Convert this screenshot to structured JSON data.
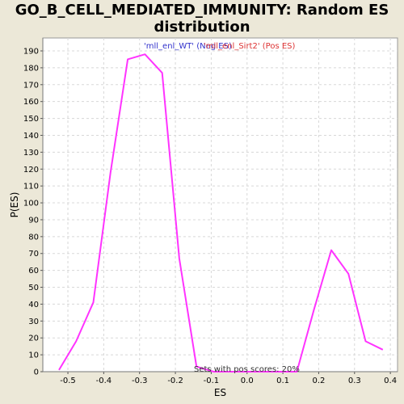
{
  "title": "GO_B_CELL_MEDIATED_IMMUNITY: Random ES\ndistribution",
  "title_line1": "GO_B_CELL_MEDIATED_IMMUNITY: Random ES",
  "title_line2": "distribution",
  "chart_data": {
    "type": "line",
    "xlabel": "ES",
    "ylabel": "P(ES)",
    "xlim": [
      -0.57,
      0.42
    ],
    "ylim": [
      0,
      190
    ],
    "xticks": [
      -0.5,
      -0.4,
      -0.3,
      -0.2,
      -0.1,
      0.0,
      0.1,
      0.2,
      0.3,
      0.4
    ],
    "xtick_labels": [
      "-0.5",
      "-0.4",
      "-0.3",
      "-0.2",
      "-0.1",
      "0.0",
      "0.1",
      "0.2",
      "0.3",
      "0.4"
    ],
    "yticks": [
      0,
      10,
      20,
      30,
      40,
      50,
      60,
      70,
      80,
      90,
      100,
      110,
      120,
      130,
      140,
      150,
      160,
      170,
      180,
      190
    ],
    "grid": true,
    "legend": [
      {
        "label": "'mll_enl_WT' (Neg ES)",
        "color": "#3333cc"
      },
      {
        "label": "'mll_enl_Sirt2' (Pos ES)",
        "color": "#dd3333"
      }
    ],
    "series": [
      {
        "color": "#ff33ff",
        "x": [
          -0.525,
          -0.477,
          -0.429,
          -0.381,
          -0.333,
          -0.285,
          -0.237,
          -0.189,
          -0.141,
          -0.093,
          -0.045,
          0.003,
          0.051,
          0.099,
          0.139,
          0.187,
          0.235,
          0.283,
          0.331,
          0.379
        ],
        "y": [
          1,
          18,
          41,
          118,
          185,
          188,
          177,
          67,
          3,
          0,
          0,
          0,
          0,
          0,
          0,
          37,
          72,
          58,
          18,
          13
        ]
      }
    ],
    "annotation": "Sets with pos scores: 20%"
  },
  "colors": {
    "background": "#ece8d8",
    "plot_background": "#ffffff",
    "grid": "#d8d8d8",
    "line": "#ff33ff"
  }
}
